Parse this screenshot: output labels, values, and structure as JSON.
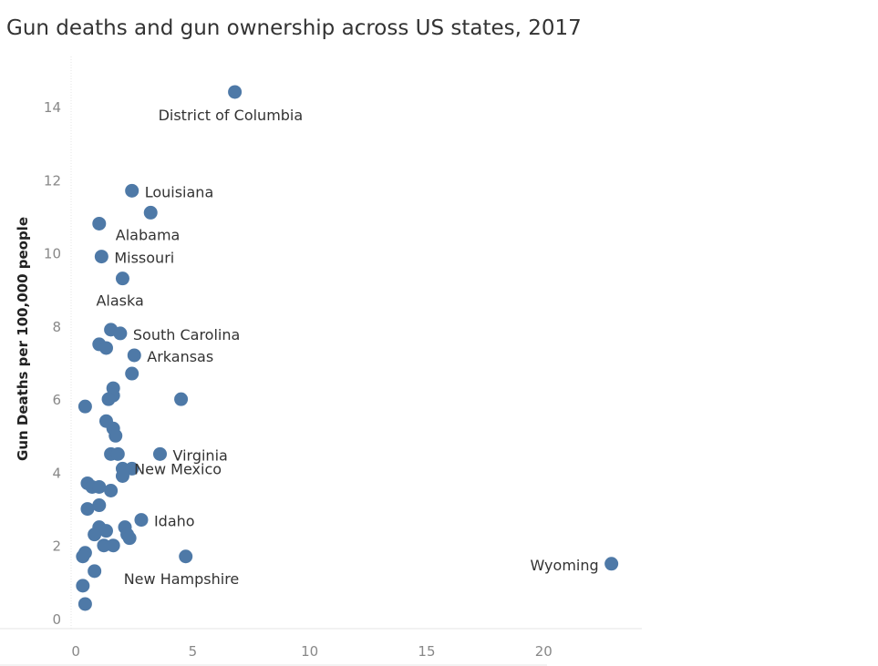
{
  "title": "Gun deaths and gun ownership across US states, 2017",
  "colors": {
    "point": "#4e79a7",
    "axis": "#e6e6e6",
    "tick": "#888888"
  },
  "chart_data": {
    "type": "scatter",
    "title": "Gun deaths and gun ownership across US states, 2017",
    "xlabel": "",
    "ylabel": "Gun Deaths per 100,000 people",
    "xlim": [
      -0.2,
      24.2
    ],
    "ylim": [
      0,
      15
    ],
    "xticks": [
      0,
      5,
      10,
      15,
      20
    ],
    "yticks": [
      0,
      2,
      4,
      6,
      8,
      10,
      12,
      14
    ],
    "grid": false,
    "points": [
      {
        "x": 6.8,
        "y": 14.4,
        "label": "District of Columbia"
      },
      {
        "x": 2.4,
        "y": 11.7,
        "label": "Louisiana"
      },
      {
        "x": 3.2,
        "y": 11.1,
        "label": ""
      },
      {
        "x": 1.0,
        "y": 10.8,
        "label": "Alabama"
      },
      {
        "x": 1.1,
        "y": 9.9,
        "label": "Missouri"
      },
      {
        "x": 2.0,
        "y": 9.3,
        "label": "Alaska"
      },
      {
        "x": 1.5,
        "y": 7.9,
        "label": ""
      },
      {
        "x": 1.9,
        "y": 7.8,
        "label": "South Carolina"
      },
      {
        "x": 1.0,
        "y": 7.5,
        "label": ""
      },
      {
        "x": 1.3,
        "y": 7.4,
        "label": ""
      },
      {
        "x": 2.5,
        "y": 7.2,
        "label": "Arkansas"
      },
      {
        "x": 2.4,
        "y": 6.7,
        "label": ""
      },
      {
        "x": 1.6,
        "y": 6.3,
        "label": ""
      },
      {
        "x": 1.6,
        "y": 6.1,
        "label": ""
      },
      {
        "x": 1.4,
        "y": 6.0,
        "label": ""
      },
      {
        "x": 4.5,
        "y": 6.0,
        "label": ""
      },
      {
        "x": 0.4,
        "y": 5.8,
        "label": ""
      },
      {
        "x": 1.3,
        "y": 5.4,
        "label": ""
      },
      {
        "x": 1.6,
        "y": 5.2,
        "label": "New Mexico"
      },
      {
        "x": 1.7,
        "y": 5.0,
        "label": ""
      },
      {
        "x": 1.5,
        "y": 4.5,
        "label": ""
      },
      {
        "x": 1.8,
        "y": 4.5,
        "label": ""
      },
      {
        "x": 3.6,
        "y": 4.5,
        "label": "Virginia"
      },
      {
        "x": 2.0,
        "y": 4.1,
        "label": ""
      },
      {
        "x": 2.4,
        "y": 4.1,
        "label": ""
      },
      {
        "x": 2.0,
        "y": 3.9,
        "label": ""
      },
      {
        "x": 0.5,
        "y": 3.7,
        "label": ""
      },
      {
        "x": 0.7,
        "y": 3.6,
        "label": ""
      },
      {
        "x": 1.0,
        "y": 3.6,
        "label": ""
      },
      {
        "x": 1.5,
        "y": 3.5,
        "label": ""
      },
      {
        "x": 0.5,
        "y": 3.0,
        "label": ""
      },
      {
        "x": 1.0,
        "y": 3.1,
        "label": ""
      },
      {
        "x": 2.8,
        "y": 2.7,
        "label": "Idaho"
      },
      {
        "x": 1.0,
        "y": 2.5,
        "label": ""
      },
      {
        "x": 1.3,
        "y": 2.4,
        "label": ""
      },
      {
        "x": 2.1,
        "y": 2.5,
        "label": ""
      },
      {
        "x": 0.8,
        "y": 2.3,
        "label": ""
      },
      {
        "x": 2.2,
        "y": 2.3,
        "label": ""
      },
      {
        "x": 2.3,
        "y": 2.2,
        "label": ""
      },
      {
        "x": 1.2,
        "y": 2.0,
        "label": ""
      },
      {
        "x": 1.6,
        "y": 2.0,
        "label": ""
      },
      {
        "x": 0.4,
        "y": 1.8,
        "label": ""
      },
      {
        "x": 0.3,
        "y": 1.7,
        "label": ""
      },
      {
        "x": 4.7,
        "y": 1.7,
        "label": "New Hampshire"
      },
      {
        "x": 22.9,
        "y": 1.5,
        "label": "Wyoming"
      },
      {
        "x": 0.8,
        "y": 1.3,
        "label": ""
      },
      {
        "x": 0.3,
        "y": 0.9,
        "label": ""
      },
      {
        "x": 0.4,
        "y": 0.4,
        "label": ""
      }
    ]
  }
}
